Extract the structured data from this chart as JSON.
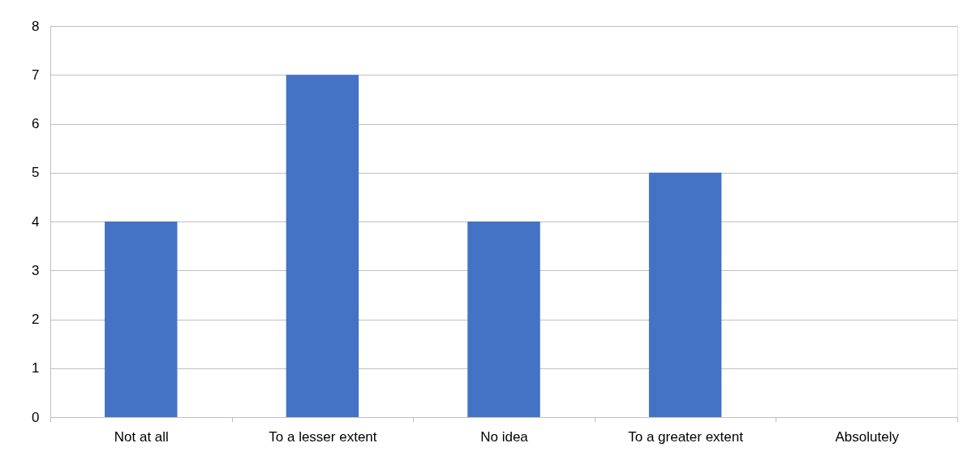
{
  "chart_data": {
    "type": "bar",
    "categories": [
      "Not at all",
      "To a lesser extent",
      "No idea",
      "To a greater extent",
      "Absolutely"
    ],
    "values": [
      4,
      7,
      4,
      5,
      0
    ],
    "color": "#4472c4",
    "ylim": [
      0,
      8
    ],
    "yticks": [
      0,
      1,
      2,
      3,
      4,
      5,
      6,
      7,
      8
    ],
    "grid": "y"
  }
}
